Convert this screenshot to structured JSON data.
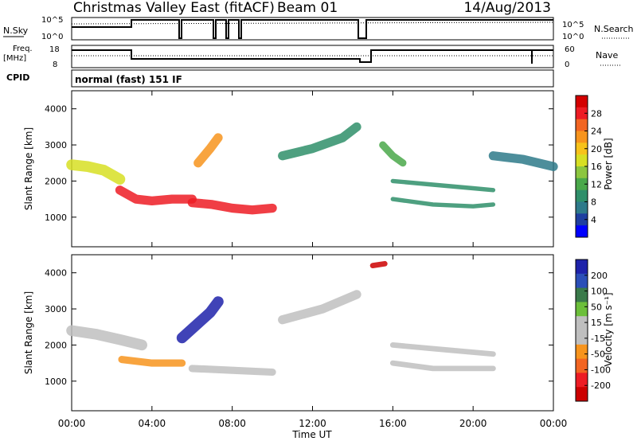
{
  "header": {
    "title": "Christmas Valley East (fitACF)",
    "beam": "Beam 01",
    "date": "14/Aug/2013"
  },
  "panels": {
    "nsky": {
      "left_label": "N.Sky",
      "left_ticks": [
        "10^5",
        "10^0"
      ],
      "right_label": "N.Search",
      "right_ticks": [
        "10^5",
        "10^0"
      ]
    },
    "freq": {
      "left_label_1": "Freq.",
      "left_label_2": "[MHz]",
      "left_ticks": [
        "18",
        "8"
      ],
      "right_label": "Nave",
      "right_ticks": [
        "60",
        "0"
      ]
    },
    "cpid": {
      "label": "CPID",
      "text": "normal (fast) 151 IF"
    }
  },
  "colorbars": {
    "power": {
      "label": "Power [dB]",
      "ticks": [
        "28",
        "24",
        "20",
        "16",
        "12",
        "8",
        "4"
      ],
      "colors": [
        "#0000ff",
        "#1f3fa0",
        "#2e7a8a",
        "#2f8f6a",
        "#4aa84a",
        "#8cc63f",
        "#d7df23",
        "#f7c21a",
        "#f7941d",
        "#f26522",
        "#ed1c24",
        "#d40000"
      ]
    },
    "velocity": {
      "label": "Velocity [m s⁻¹]",
      "ticks": [
        "200",
        "100",
        "50",
        "15",
        "-15",
        "-50",
        "-100",
        "-200"
      ],
      "colors": [
        "#1e22aa",
        "#2b4fb8",
        "#3a7a4a",
        "#6cbf3a",
        "#bfbfbf",
        "#bfbfbf",
        "#f7941d",
        "#f26522",
        "#ed1c24",
        "#cc0000"
      ]
    }
  },
  "chart_data": [
    {
      "type": "heatmap",
      "name": "power",
      "xlabel": "",
      "ylabel": "Slant Range [km]",
      "xlim": [
        0,
        24
      ],
      "ylim": [
        180,
        4500
      ],
      "y_ticks": [
        "4000",
        "3000",
        "2000",
        "1000"
      ],
      "y_tick_values": [
        4000,
        3000,
        2000,
        1000
      ],
      "x_tick_values": [
        0,
        4,
        8,
        12,
        16,
        20,
        24
      ],
      "colorbar": "Power [dB]",
      "clim": [
        0,
        32
      ],
      "features": [
        {
          "t": [
            0.0,
            0.8,
            1.6,
            2.4
          ],
          "range": [
            2450,
            2400,
            2300,
            2050
          ],
          "power": 16,
          "width_km": 300
        },
        {
          "t": [
            2.4,
            3.2,
            4.0,
            5.0,
            6.0
          ],
          "range": [
            1750,
            1500,
            1450,
            1500,
            1500
          ],
          "power": 28,
          "width_km": 250
        },
        {
          "t": [
            6.0,
            7.0,
            8.0,
            9.0,
            10.0
          ],
          "range": [
            1400,
            1350,
            1250,
            1200,
            1250
          ],
          "power": 28,
          "width_km": 250
        },
        {
          "t": [
            6.3,
            6.9,
            7.3
          ],
          "range": [
            2500,
            2900,
            3200
          ],
          "power": 22,
          "width_km": 250
        },
        {
          "t": [
            10.5,
            12.0,
            13.5,
            14.2
          ],
          "range": [
            2700,
            2900,
            3200,
            3500
          ],
          "power": 8,
          "width_km": 250
        },
        {
          "t": [
            15.5,
            16.0,
            16.5
          ],
          "range": [
            3000,
            2700,
            2500
          ],
          "power": 12,
          "width_km": 200
        },
        {
          "t": [
            16.0,
            18.0,
            20.0,
            21.0
          ],
          "range": [
            2000,
            1900,
            1800,
            1750
          ],
          "power": 10,
          "width_km": 120
        },
        {
          "t": [
            16.0,
            18.0,
            20.0,
            21.0
          ],
          "range": [
            1500,
            1350,
            1300,
            1350
          ],
          "power": 10,
          "width_km": 120
        },
        {
          "t": [
            21.0,
            22.5,
            24.0
          ],
          "range": [
            2700,
            2600,
            2400
          ],
          "power": 6,
          "width_km": 250
        }
      ]
    },
    {
      "type": "heatmap",
      "name": "velocity",
      "xlabel": "Time UT",
      "ylabel": "Slant Range [km]",
      "xlim": [
        0,
        24
      ],
      "ylim": [
        180,
        4500
      ],
      "x_ticks": [
        "00:00",
        "04:00",
        "08:00",
        "12:00",
        "16:00",
        "20:00",
        "00:00"
      ],
      "x_tick_values": [
        0,
        4,
        8,
        12,
        16,
        20,
        24
      ],
      "y_ticks": [
        "4000",
        "3000",
        "2000",
        "1000"
      ],
      "y_tick_values": [
        4000,
        3000,
        2000,
        1000
      ],
      "colorbar": "Velocity [m s⁻¹]",
      "clim": [
        -250,
        250
      ],
      "features": [
        {
          "t": [
            0.0,
            1.2,
            2.4,
            3.5
          ],
          "range": [
            2400,
            2300,
            2150,
            2000
          ],
          "velocity": 0,
          "width_km": 300
        },
        {
          "t": [
            2.5,
            4.0,
            5.5
          ],
          "range": [
            1600,
            1500,
            1500
          ],
          "velocity": -60,
          "width_km": 200
        },
        {
          "t": [
            5.5,
            6.3,
            6.9,
            7.3
          ],
          "range": [
            2200,
            2600,
            2900,
            3200
          ],
          "velocity": 200,
          "width_km": 300
        },
        {
          "t": [
            6.0,
            8.0,
            10.0
          ],
          "range": [
            1350,
            1300,
            1250
          ],
          "velocity": 0,
          "width_km": 200
        },
        {
          "t": [
            10.5,
            12.5,
            14.2
          ],
          "range": [
            2700,
            3000,
            3400
          ],
          "velocity": 0,
          "width_km": 250
        },
        {
          "t": [
            16.0,
            18.0,
            21.0
          ],
          "range": [
            2000,
            1900,
            1750
          ],
          "velocity": 0,
          "width_km": 150
        },
        {
          "t": [
            16.0,
            18.0,
            21.0
          ],
          "range": [
            1500,
            1350,
            1350
          ],
          "velocity": 0,
          "width_km": 150
        },
        {
          "t": [
            15.0,
            15.6
          ],
          "range": [
            4200,
            4250
          ],
          "velocity": -250,
          "width_km": 150
        }
      ]
    }
  ]
}
